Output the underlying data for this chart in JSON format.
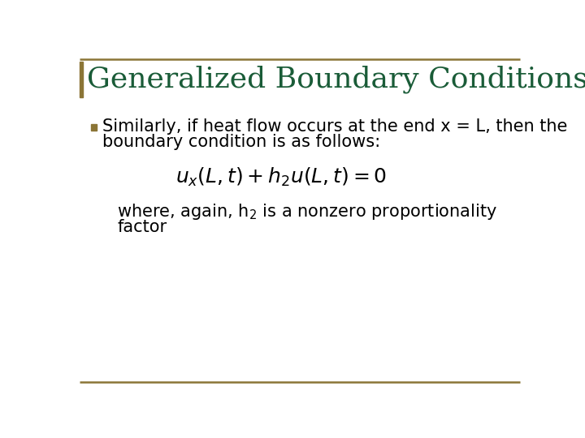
{
  "title": "Generalized Boundary Conditions",
  "title_color": "#1a5c38",
  "title_fontsize": 26,
  "background_color": "#ffffff",
  "border_color": "#8b7536",
  "left_bar_color": "#8b7536",
  "bullet_color": "#8b7536",
  "bullet_text_line1": "Similarly, if heat flow occurs at the end x = L, then the",
  "bullet_text_line2": "boundary condition is as follows:",
  "bullet_fontsize": 15,
  "equation": "$u_x(L,t) + h_2u(L,t) = 0$",
  "equation_fontsize": 18,
  "where_text": "where, again, h$_2$ is a nonzero proportionality",
  "factor_text": "factor",
  "sub_text_fontsize": 15,
  "text_color": "#000000"
}
